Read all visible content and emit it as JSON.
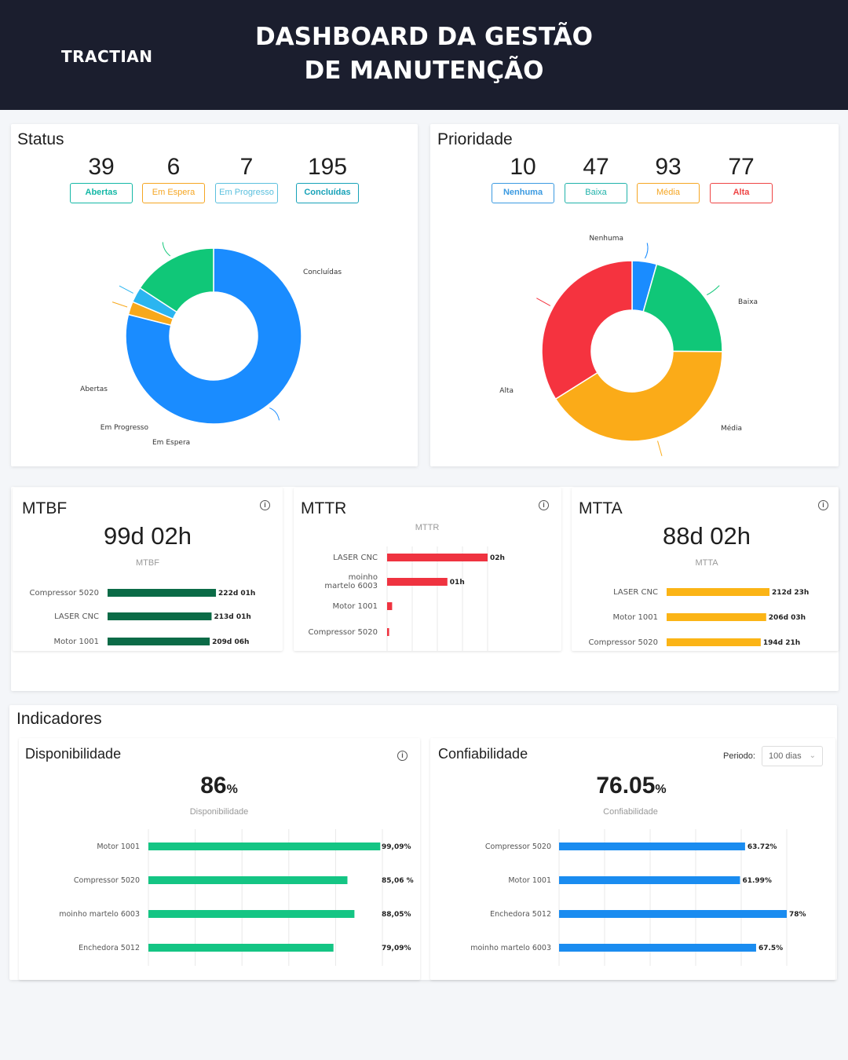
{
  "header": {
    "logo": "TRACTIAN",
    "title_line1": "DASHBOARD DA GESTÃO",
    "title_line2": "DE MANUTENÇÃO"
  },
  "status": {
    "title": "Status",
    "items": [
      {
        "value": "39",
        "label": "Abertas",
        "color": "#14b8a6"
      },
      {
        "value": "6",
        "label": "Em Espera",
        "color": "#f5a623"
      },
      {
        "value": "7",
        "label": "Em Progresso",
        "color": "#5bc0de"
      },
      {
        "value": "195",
        "label": "Concluídas",
        "color": "#17a2b8"
      }
    ],
    "donut": [
      {
        "label": "Concluídas",
        "value": 195,
        "color": "#1a8cff"
      },
      {
        "label": "Em Espera",
        "value": 6,
        "color": "#f7a81b"
      },
      {
        "label": "Em Progresso",
        "value": 7,
        "color": "#2bb5f0"
      },
      {
        "label": "Abertas",
        "value": 39,
        "color": "#10c778"
      }
    ]
  },
  "prioridade": {
    "title": "Prioridade",
    "items": [
      {
        "value": "10",
        "label": "Nenhuma",
        "color": "#3b9ae1"
      },
      {
        "value": "47",
        "label": "Baixa",
        "color": "#20b2aa"
      },
      {
        "value": "93",
        "label": "Média",
        "color": "#f5a623"
      },
      {
        "value": "77",
        "label": "Alta",
        "color": "#ef4444"
      }
    ],
    "donut": [
      {
        "label": "Nenhuma",
        "value": 10,
        "color": "#1a8cff"
      },
      {
        "label": "Baixa",
        "value": 47,
        "color": "#10c778"
      },
      {
        "label": "Média",
        "value": 93,
        "color": "#fbab18"
      },
      {
        "label": "Alta",
        "value": 77,
        "color": "#f5333f"
      }
    ]
  },
  "mtbf": {
    "title": "MTBF",
    "value": "99d 02h",
    "sublabel": "MTBF",
    "color": "#0b6b47",
    "bars": [
      {
        "label": "Compressor 5020",
        "value": 222.04,
        "text": "222d 01h"
      },
      {
        "label": "LASER CNC",
        "value": 213.04,
        "text": "213d 01h"
      },
      {
        "label": "Motor 1001",
        "value": 209.25,
        "text": "209d 06h"
      }
    ]
  },
  "mttr": {
    "title": "MTTR",
    "sublabel": "MTTR",
    "color": "#ef3340",
    "bars": [
      {
        "label": "LASER CNC",
        "label2": "",
        "value": 2,
        "text": "02h"
      },
      {
        "label": "moinho",
        "label2": "martelo 6003",
        "value": 1.2,
        "text": "01h"
      },
      {
        "label": "Motor 1001",
        "label2": "",
        "value": 0.1,
        "text": ""
      },
      {
        "label": "Compressor 5020",
        "label2": "",
        "value": 0.04,
        "text": ""
      }
    ]
  },
  "mtta": {
    "title": "MTTA",
    "value": "88d 02h",
    "sublabel": "MTTA",
    "color": "#fbb416",
    "bars": [
      {
        "label": "LASER CNC",
        "value": 212.96,
        "text": "212d 23h"
      },
      {
        "label": "Motor 1001",
        "value": 206.13,
        "text": "206d 03h"
      },
      {
        "label": "Compressor 5020",
        "value": 194.88,
        "text": "194d 21h"
      }
    ]
  },
  "indicadores": {
    "title": "Indicadores"
  },
  "disponibilidade": {
    "title": "Disponibilidade",
    "value": "86",
    "unit": "%",
    "sublabel": "Disponibilidade",
    "color": "#14c584",
    "bars": [
      {
        "label": "Motor 1001",
        "value": 99.09,
        "text": "99,09%"
      },
      {
        "label": "Compressor 5020",
        "value": 85.06,
        "text": "85,06 %"
      },
      {
        "label": "moinho martelo 6003",
        "value": 88.05,
        "text": "88,05%"
      },
      {
        "label": "Enchedora 5012",
        "value": 79.09,
        "text": "79,09%"
      }
    ]
  },
  "confiabilidade": {
    "title": "Confiabilidade",
    "value": "76.05",
    "unit": "%",
    "sublabel": "Confiabilidade",
    "color": "#1a8cf0",
    "periodo_label": "Periodo:",
    "periodo_value": "100 dias",
    "bars": [
      {
        "label": "Compressor 5020",
        "value": 63.72,
        "text": "63.72%"
      },
      {
        "label": "Motor 1001",
        "value": 61.99,
        "text": "61.99%"
      },
      {
        "label": "Enchedora 5012",
        "value": 78,
        "text": "78%"
      },
      {
        "label": "moinho martelo 6003",
        "value": 67.5,
        "text": "67.5%"
      }
    ]
  }
}
